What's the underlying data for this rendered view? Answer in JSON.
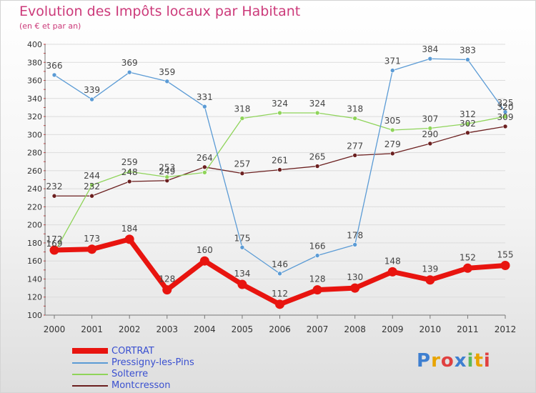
{
  "header": {
    "title": "Evolution des Impôts locaux par Habitant",
    "subtitle": "(en € et par an)"
  },
  "colors": {
    "title": "#cc3a7a",
    "legend_text": "#3a50d0",
    "axis": "#777777",
    "grid": "#dcdcdc"
  },
  "logo": {
    "text": "Proxiti",
    "letter_colors": [
      "#3e7fd0",
      "#e8a400",
      "#e04040",
      "#3e7fd0",
      "#5cb85c",
      "#e8a400",
      "#e04040"
    ]
  },
  "chart_data": {
    "type": "line",
    "title": "Evolution des Impôts locaux par Habitant",
    "subtitle": "(en € et par an)",
    "x": [
      "2000",
      "2001",
      "2002",
      "2003",
      "2004",
      "2005",
      "2006",
      "2007",
      "2008",
      "2009",
      "2010",
      "2011",
      "2012"
    ],
    "ylim": [
      100,
      400
    ],
    "yticks": [
      100,
      120,
      140,
      160,
      180,
      200,
      220,
      240,
      260,
      280,
      300,
      320,
      340,
      360,
      380,
      400
    ],
    "grid": "horizontal",
    "legend_position": "bottom-left",
    "series": [
      {
        "name": "CORTRAT",
        "color": "#e8140f",
        "values": [
          172,
          173,
          184,
          128,
          160,
          134,
          112,
          128,
          130,
          148,
          139,
          152,
          155
        ],
        "labels": [
          "172",
          "173",
          "184",
          "128",
          "160",
          "134",
          "112",
          "128",
          "130",
          "148",
          "139",
          "152",
          "155"
        ]
      },
      {
        "name": "Pressigny-les-Pins",
        "color": "#5b9bd5",
        "values": [
          366,
          339,
          369,
          359,
          331,
          175,
          146,
          166,
          178,
          371,
          384,
          383,
          325
        ],
        "labels": [
          "366",
          "339",
          "369",
          "359",
          "331",
          "175",
          "146",
          "166",
          "178",
          "371",
          "384",
          "383",
          "325"
        ]
      },
      {
        "name": "Solterre",
        "color": "#8fd45a",
        "values": [
          169,
          244,
          259,
          253,
          258,
          318,
          324,
          324,
          318,
          305,
          307,
          312,
          320
        ],
        "labels": [
          "169",
          "244",
          "259",
          "253",
          "",
          "318",
          "324",
          "324",
          "318",
          "305",
          "307",
          "312",
          "320"
        ]
      },
      {
        "name": "Montcresson",
        "color": "#6b1f1f",
        "values": [
          232,
          232,
          248,
          249,
          264,
          257,
          261,
          265,
          277,
          279,
          290,
          302,
          309
        ],
        "labels": [
          "232",
          "232",
          "248",
          "249",
          "264",
          "257",
          "261",
          "265",
          "277",
          "279",
          "290",
          "302",
          "309"
        ]
      }
    ]
  }
}
